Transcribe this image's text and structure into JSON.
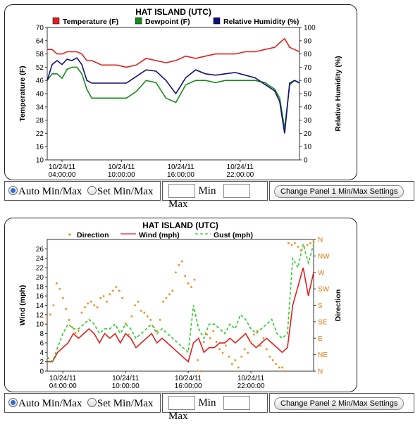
{
  "panel1": {
    "title": "HAT ISLAND  (UTC)",
    "legend": [
      {
        "name": "Temperature (F)",
        "color": "#e02020"
      },
      {
        "name": "Dewpoint (F)",
        "color": "#1a8a1a"
      },
      {
        "name": "Relative Humidity (%)",
        "color": "#10107a"
      }
    ],
    "ylabel_left": "Temperature (F)",
    "ylabel_right": "Relative Humidity (%)",
    "yticks_left": [
      "10",
      "16",
      "22",
      "28",
      "34",
      "40",
      "46",
      "52",
      "58",
      "64",
      "70"
    ],
    "yticks_right": [
      "0",
      "10",
      "20",
      "30",
      "40",
      "50",
      "60",
      "70",
      "80",
      "90",
      "100"
    ],
    "xticks": [
      {
        "date": "10/24/11",
        "time": "04:00:00"
      },
      {
        "date": "10/24/11",
        "time": "10:00:00"
      },
      {
        "date": "10/24/11",
        "time": "16:00:00"
      },
      {
        "date": "10/24/11",
        "time": "22:00:00"
      }
    ]
  },
  "panel2": {
    "title": "HAT ISLAND  (UTC)",
    "legend": [
      {
        "name": "Direction",
        "color": "#f08c1e"
      },
      {
        "name": "Wind (mph)",
        "color": "#e02020"
      },
      {
        "name": "Gust (mph)",
        "color": "#2ccc2c"
      }
    ],
    "ylabel_left": "Wind (mph)",
    "ylabel_right": "Direction",
    "yticks_left": [
      "0",
      "2",
      "4",
      "6",
      "8",
      "10",
      "12",
      "14",
      "16",
      "18",
      "20",
      "22",
      "24",
      "26"
    ],
    "yticks_right": [
      "N",
      "NE",
      "E",
      "SE",
      "S",
      "SW",
      "W",
      "NW",
      "N"
    ],
    "xticks": [
      {
        "date": "10/24/11",
        "time": "04:00:00"
      },
      {
        "date": "10/24/11",
        "time": "10:00:00"
      },
      {
        "date": "10/24/11",
        "time": "16:00:00"
      },
      {
        "date": "10/24/11",
        "time": "22:00:00"
      }
    ]
  },
  "controls1": {
    "auto_label": "Auto Min/Max",
    "set_label": "Set Min/Max",
    "min_label": "Min",
    "max_label": "Max",
    "button_label": "Change Panel 1 Min/Max Settings"
  },
  "controls2": {
    "auto_label": "Auto Min/Max",
    "set_label": "Set Min/Max",
    "min_label": "Min",
    "max_label": "Max",
    "button_label": "Change Panel 2 Min/Max Settings"
  },
  "chart_data": [
    {
      "type": "line",
      "title": "HAT ISLAND  (UTC)",
      "x_unit": "hours since 10/24/11 02:30 UTC",
      "xlim": [
        0,
        25.5
      ],
      "ylim_left": [
        10,
        70
      ],
      "ylim_right": [
        0,
        100
      ],
      "xlabel": "",
      "ylabel": "Temperature (F)",
      "ylabel_right": "Relative Humidity (%)",
      "series": [
        {
          "name": "Temperature (F)",
          "axis": "left",
          "color": "#e02020",
          "x": [
            0,
            0.5,
            1,
            1.5,
            2,
            2.5,
            3,
            3.5,
            4,
            4.5,
            5,
            5.5,
            6,
            7,
            8,
            9,
            10,
            11,
            12,
            13,
            14,
            15,
            16,
            17,
            18,
            19,
            20,
            21,
            22,
            23,
            23.5,
            24,
            24.5,
            25,
            25.5
          ],
          "y": [
            60,
            60,
            58,
            58,
            59,
            59,
            59,
            58,
            55,
            55,
            54,
            53,
            53,
            53,
            52,
            53,
            56,
            55,
            54,
            55,
            57,
            56,
            57,
            58,
            58,
            58,
            59,
            59,
            60,
            61,
            63,
            65,
            61,
            60,
            59
          ]
        },
        {
          "name": "Dewpoint (F)",
          "axis": "left",
          "color": "#1a8a1a",
          "x": [
            0,
            0.5,
            1,
            1.5,
            2,
            2.5,
            3,
            3.5,
            4,
            4.5,
            5,
            6,
            7,
            8,
            9,
            10,
            11,
            12,
            13,
            14,
            15,
            16,
            17,
            18,
            19,
            20,
            21,
            22,
            23,
            23.5,
            24,
            24.5,
            25,
            25.5
          ],
          "y": [
            46,
            49,
            49,
            47,
            51,
            52,
            52,
            49,
            42,
            38,
            38,
            38,
            38,
            38,
            41,
            46,
            45,
            38,
            36,
            44,
            46,
            46,
            45,
            46,
            46,
            46,
            46,
            45,
            42,
            38,
            24,
            44,
            46,
            45
          ]
        },
        {
          "name": "Relative Humidity (%)",
          "axis": "right",
          "color": "#10107a",
          "x": [
            0,
            0.5,
            1,
            1.5,
            2,
            2.5,
            3,
            3.5,
            4,
            4.5,
            5,
            6,
            7,
            8,
            9,
            10,
            11,
            12,
            13,
            14,
            15,
            16,
            17,
            18,
            19,
            20,
            21,
            22,
            23,
            23.5,
            24,
            24.5,
            25,
            25.5
          ],
          "y": [
            60,
            72,
            75,
            72,
            76,
            75,
            77,
            72,
            60,
            58,
            58,
            58,
            58,
            58,
            63,
            68,
            67,
            60,
            50,
            62,
            68,
            65,
            64,
            65,
            66,
            64,
            62,
            57,
            52,
            44,
            20,
            58,
            60,
            58
          ]
        }
      ]
    },
    {
      "type": "line",
      "title": "HAT ISLAND  (UTC)",
      "x_unit": "hours since 10/24/11 02:30 UTC",
      "xlim": [
        0,
        25.5
      ],
      "ylim_left": [
        0,
        28
      ],
      "ylim_right": [
        0,
        360
      ],
      "xlabel": "",
      "ylabel": "Wind (mph)",
      "ylabel_right": "Direction",
      "series": [
        {
          "name": "Wind (mph)",
          "axis": "left",
          "color": "#e02020",
          "x": [
            0,
            0.5,
            1,
            1.5,
            2,
            2.5,
            3,
            3.5,
            4,
            4.5,
            5,
            5.5,
            6,
            6.5,
            7,
            7.5,
            8,
            8.5,
            9,
            9.5,
            10,
            10.5,
            11,
            11.5,
            12,
            12.5,
            13,
            13.5,
            14,
            14.5,
            15,
            15.5,
            16,
            16.5,
            17,
            17.5,
            18,
            18.5,
            19,
            19.5,
            20,
            20.5,
            21,
            21.5,
            22,
            22.5,
            23,
            23.5,
            24,
            24.5,
            25,
            25.5
          ],
          "y": [
            2,
            2,
            4,
            5,
            6,
            8,
            7,
            8,
            9,
            8,
            6,
            8,
            7,
            8,
            6,
            8,
            7,
            5,
            6,
            7,
            8,
            6,
            7,
            6,
            5,
            4,
            3,
            2,
            6,
            7,
            4,
            5,
            5,
            6,
            6,
            7,
            6,
            7,
            8,
            6,
            5,
            6,
            7,
            6,
            5,
            4,
            5,
            14,
            18,
            22,
            16,
            21
          ]
        },
        {
          "name": "Gust (mph)",
          "axis": "left",
          "color": "#2ccc2c",
          "x": [
            0,
            0.5,
            1,
            1.5,
            2,
            2.5,
            3,
            3.5,
            4,
            4.5,
            5,
            5.5,
            6,
            6.5,
            7,
            7.5,
            8,
            8.5,
            9,
            9.5,
            10,
            10.5,
            11,
            11.5,
            12,
            12.5,
            13,
            13.5,
            14,
            14.5,
            15,
            15.5,
            16,
            16.5,
            17,
            17.5,
            18,
            18.5,
            19,
            19.5,
            20,
            20.5,
            21,
            21.5,
            22,
            22.5,
            23,
            23.5,
            24,
            24.5,
            25,
            25.5
          ],
          "y": [
            3,
            2,
            5,
            8,
            10,
            9,
            9,
            10,
            11,
            10,
            8,
            9,
            9,
            10,
            8,
            10,
            9,
            7,
            8,
            9,
            10,
            8,
            9,
            8,
            7,
            6,
            5,
            4,
            14,
            9,
            7,
            10,
            10,
            9,
            8,
            10,
            9,
            12,
            11,
            9,
            8,
            9,
            10,
            11,
            8,
            7,
            8,
            24,
            22,
            27,
            23,
            27
          ]
        },
        {
          "name": "Direction",
          "axis": "right",
          "color": "#f08c1e",
          "mode": "markers",
          "x": [
            0,
            0.3,
            0.6,
            0.9,
            1.2,
            1.5,
            1.8,
            2.1,
            2.4,
            2.7,
            3,
            3.3,
            3.6,
            3.9,
            4.2,
            4.5,
            4.8,
            5.1,
            5.4,
            5.7,
            6,
            6.3,
            6.6,
            6.9,
            7.2,
            7.5,
            7.8,
            8.1,
            8.4,
            8.7,
            9,
            9.3,
            9.6,
            9.9,
            10.2,
            10.5,
            10.8,
            11.1,
            11.4,
            11.7,
            12,
            12.3,
            12.6,
            12.9,
            13.2,
            13.5,
            13.8,
            14.1,
            14.4,
            14.7,
            15,
            15.3,
            15.6,
            15.9,
            16.2,
            16.5,
            16.8,
            17.1,
            17.4,
            17.7,
            18,
            18.3,
            18.6,
            18.9,
            19.2,
            19.5,
            19.8,
            20.1,
            20.4,
            20.7,
            21,
            21.3,
            21.6,
            21.9,
            22.2,
            22.5,
            22.8,
            23.1,
            23.4,
            23.7,
            24,
            24.3,
            24.6,
            24.9,
            25.2,
            25.5
          ],
          "y": [
            140,
            155,
            180,
            240,
            225,
            200,
            170,
            140,
            120,
            105,
            110,
            160,
            175,
            185,
            190,
            180,
            175,
            200,
            205,
            190,
            210,
            220,
            230,
            220,
            200,
            130,
            100,
            150,
            180,
            190,
            165,
            160,
            150,
            140,
            120,
            110,
            140,
            190,
            200,
            210,
            220,
            270,
            290,
            300,
            260,
            240,
            230,
            250,
            30,
            0,
            80,
            100,
            90,
            110,
            80,
            60,
            50,
            70,
            40,
            20,
            30,
            10,
            40,
            60,
            50,
            80,
            100,
            110,
            70,
            90,
            60,
            40,
            30,
            20,
            10,
            10,
            0,
            350,
            345,
            350,
            340,
            330,
            340,
            345,
            350,
            355
          ]
        }
      ]
    }
  ]
}
